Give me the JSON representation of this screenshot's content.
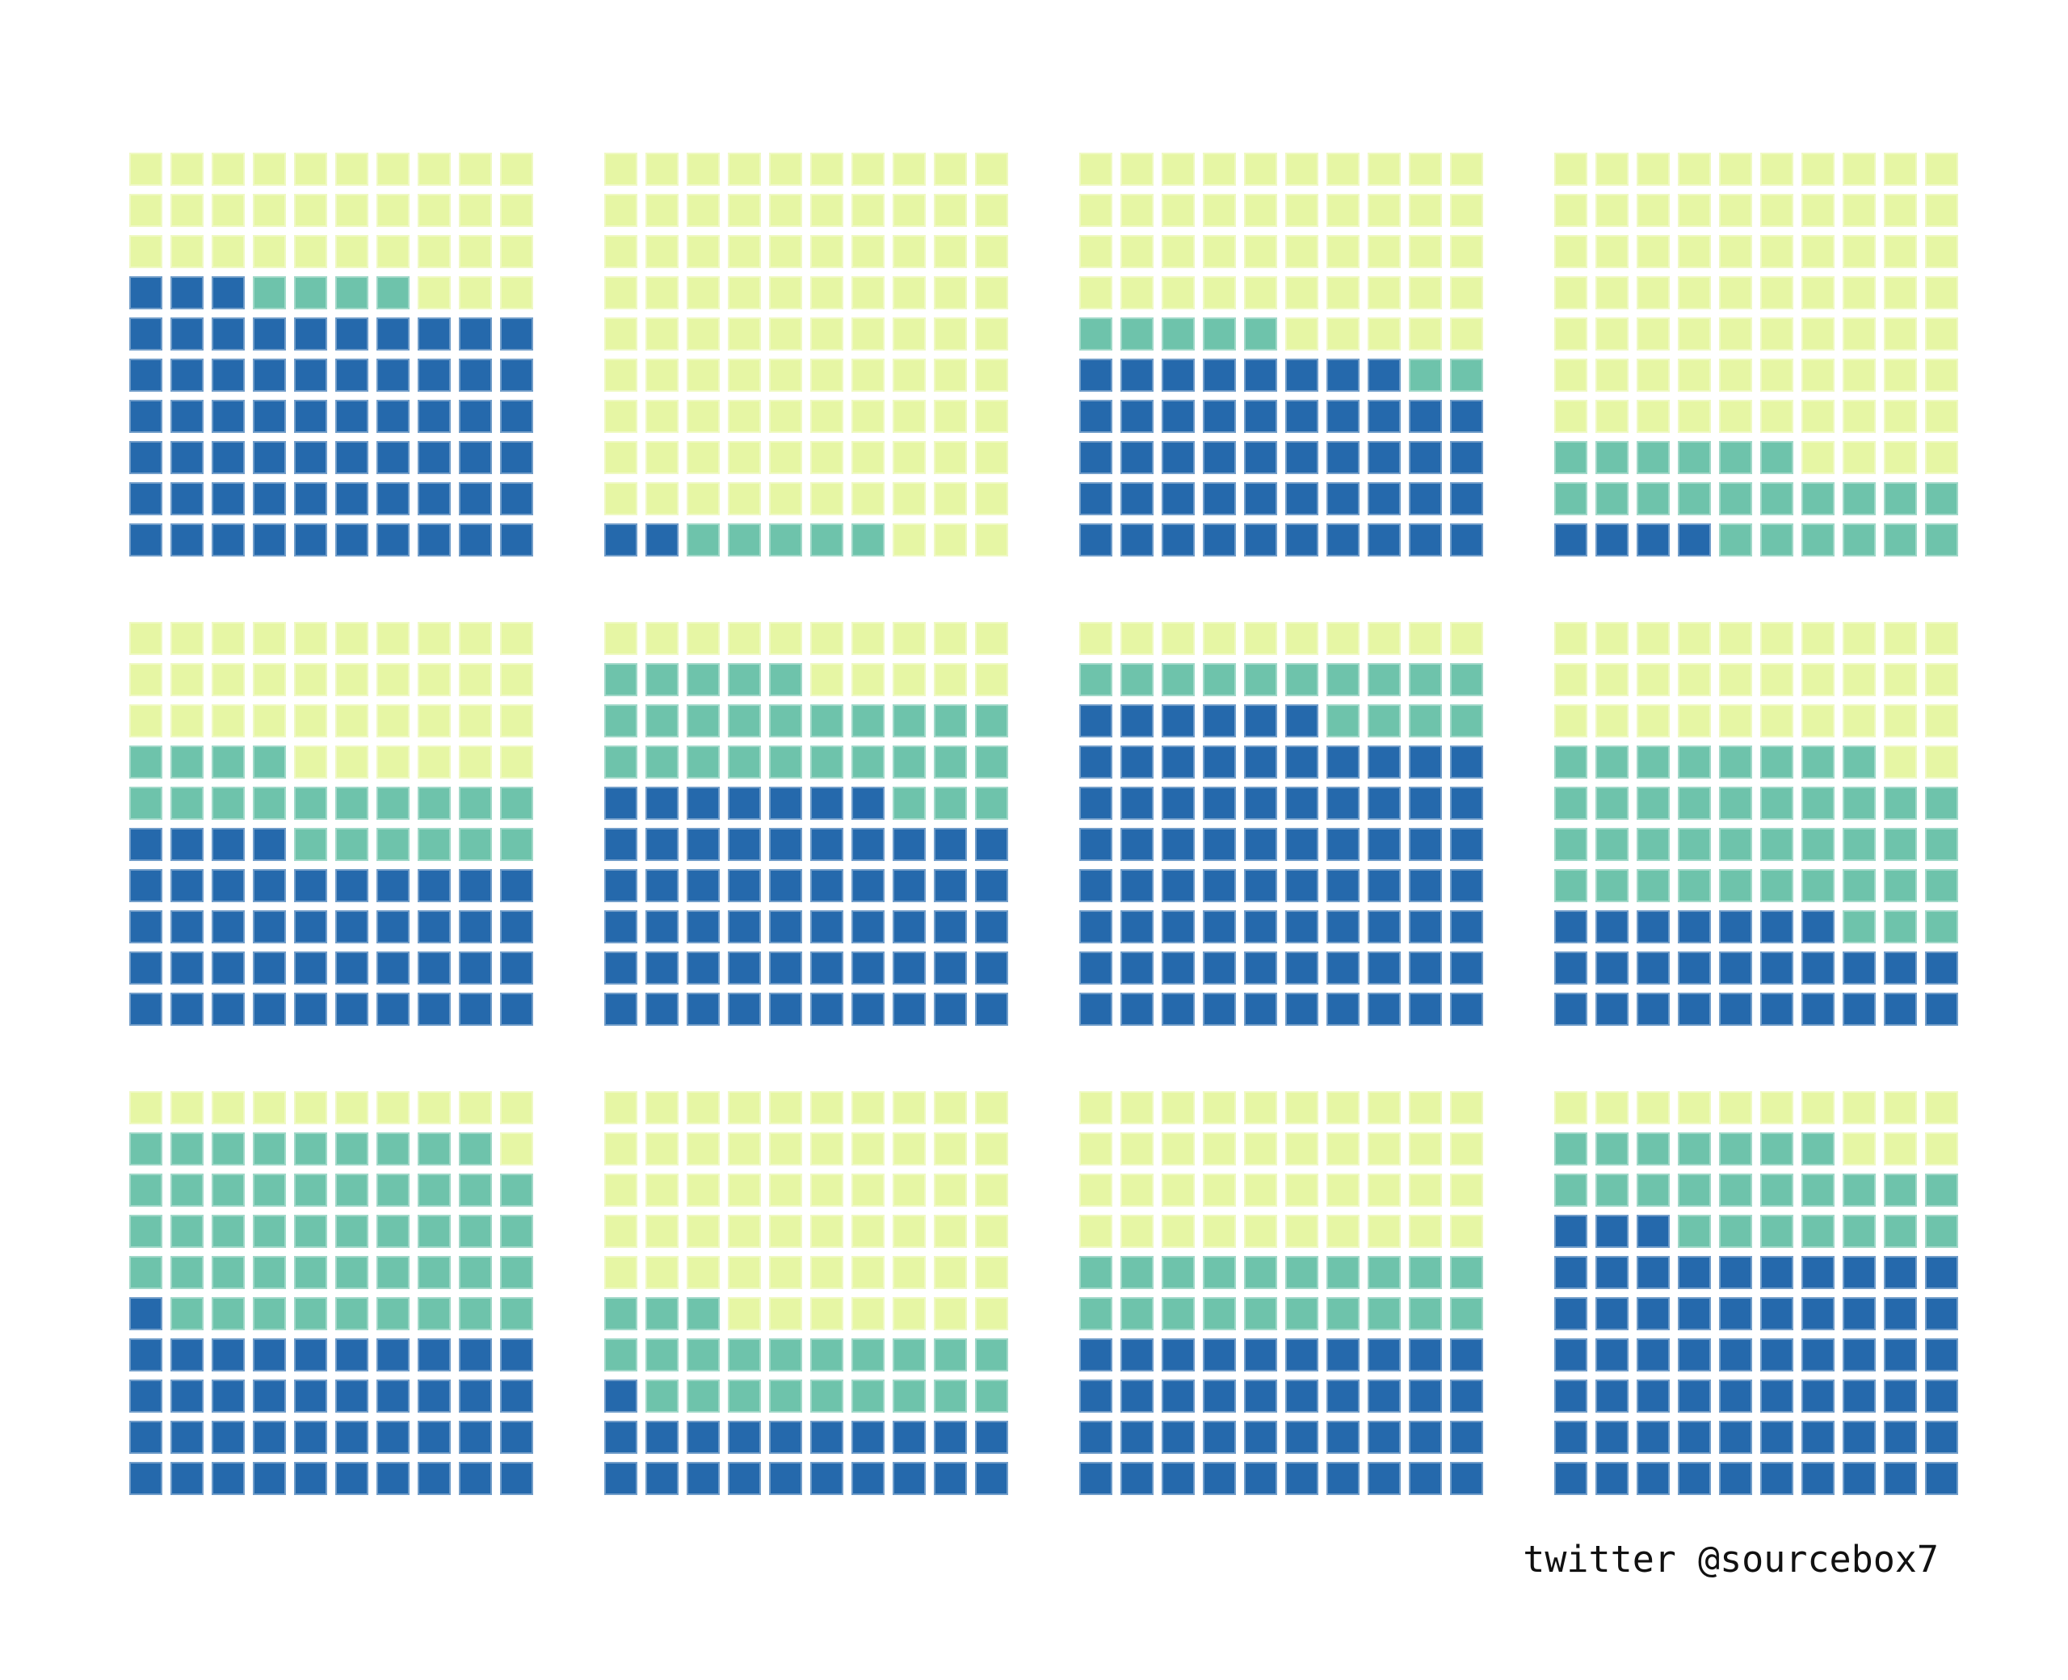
{
  "footer": {
    "credit": "twitter @sourcebox7"
  },
  "palette": {
    "background": "#ffffff",
    "blue": "#2569ac",
    "teal": "#6ec3ab",
    "yellow": "#e6f6a4",
    "text": "#111111"
  },
  "chart_data": {
    "type": "waffle",
    "description": "Grid of 12 waffle charts, each a 10x10 grid of 100 squares split among three colors",
    "grid": {
      "rows": 10,
      "cols": 10,
      "squares_per_chart": 100
    },
    "layout": {
      "chart_rows": 3,
      "chart_cols": 4,
      "order": "row-major, left to right, top to bottom"
    },
    "categories": [
      "blue",
      "teal",
      "yellow"
    ],
    "fill_order": "squares fill from bottom-left corner, row by row upward, left-to-right within a row, series order: blue, then teal, then yellow",
    "units": "1 square = 1",
    "charts": [
      {
        "position": "row 1, col 1",
        "values": {
          "blue": 63,
          "teal": 4,
          "yellow": 33
        }
      },
      {
        "position": "row 1, col 2",
        "values": {
          "blue": 2,
          "teal": 5,
          "yellow": 93
        }
      },
      {
        "position": "row 1, col 3",
        "values": {
          "blue": 48,
          "teal": 7,
          "yellow": 45
        }
      },
      {
        "position": "row 1, col 4",
        "values": {
          "blue": 4,
          "teal": 22,
          "yellow": 74
        }
      },
      {
        "position": "row 2, col 1",
        "values": {
          "blue": 44,
          "teal": 20,
          "yellow": 36
        }
      },
      {
        "position": "row 2, col 2",
        "values": {
          "blue": 57,
          "teal": 28,
          "yellow": 15
        }
      },
      {
        "position": "row 2, col 3",
        "values": {
          "blue": 76,
          "teal": 14,
          "yellow": 10
        }
      },
      {
        "position": "row 2, col 4",
        "values": {
          "blue": 27,
          "teal": 41,
          "yellow": 32
        }
      },
      {
        "position": "row 3, col 1",
        "values": {
          "blue": 41,
          "teal": 48,
          "yellow": 11
        }
      },
      {
        "position": "row 3, col 2",
        "values": {
          "blue": 21,
          "teal": 22,
          "yellow": 57
        }
      },
      {
        "position": "row 3, col 3",
        "values": {
          "blue": 40,
          "teal": 20,
          "yellow": 40
        }
      },
      {
        "position": "row 3, col 4",
        "values": {
          "blue": 63,
          "teal": 24,
          "yellow": 13
        }
      }
    ]
  }
}
